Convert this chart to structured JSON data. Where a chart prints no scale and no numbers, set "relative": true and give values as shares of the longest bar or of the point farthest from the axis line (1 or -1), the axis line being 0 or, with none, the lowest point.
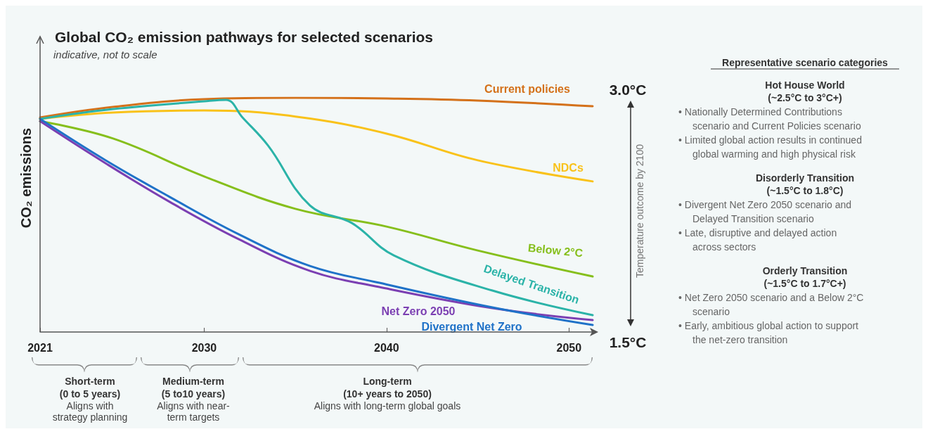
{
  "chart_data": {
    "type": "line",
    "title": "Global CO₂ emission pathways for selected scenarios",
    "subtitle": "indicative, not to scale",
    "ylabel": "CO₂ emissions",
    "relative": true,
    "legend": false,
    "grid": false,
    "xlim": [
      2021,
      2051.3
    ],
    "xticks": [
      2021,
      2030,
      2040,
      2050
    ],
    "series": [
      {
        "name": "Current policies",
        "color": "#d4711a",
        "x": [
          2021,
          2025,
          2030,
          2035,
          2040,
          2045,
          2051.3
        ],
        "values": [
          0.916,
          0.961,
          0.994,
          1,
          0.997,
          0.988,
          0.964
        ]
      },
      {
        "name": "NDCs",
        "color": "#f9c21a",
        "x": [
          2021,
          2025,
          2030,
          2035,
          2040,
          2045,
          2051.3
        ],
        "values": [
          0.91,
          0.937,
          0.946,
          0.92,
          0.847,
          0.733,
          0.643
        ]
      },
      {
        "name": "Below 2°C",
        "color": "#86bf1c",
        "x": [
          2021,
          2025,
          2030,
          2035,
          2040,
          2045,
          2051.3
        ],
        "values": [
          0.9,
          0.826,
          0.664,
          0.526,
          0.45,
          0.348,
          0.237
        ]
      },
      {
        "name": "Delayed Transition",
        "color": "#2bb3a8",
        "x": [
          2021,
          2025,
          2030,
          2031.2,
          2032.1,
          2033.5,
          2035.8,
          2038.1,
          2040.4,
          2045.8,
          2051.3
        ],
        "values": [
          0.91,
          0.952,
          0.985,
          0.991,
          0.916,
          0.796,
          0.54,
          0.465,
          0.327,
          0.177,
          0.072
        ]
      },
      {
        "name": "Net Zero 2050",
        "color": "#7b3fb2",
        "x": [
          2021,
          2024.6,
          2028.1,
          2031.9,
          2035.8,
          2039.6,
          2045.8,
          2051.3
        ],
        "values": [
          0.9,
          0.72,
          0.556,
          0.396,
          0.261,
          0.192,
          0.102,
          0.051
        ]
      },
      {
        "name": "Divergent Net Zero",
        "color": "#1f72c8",
        "x": [
          2021,
          2024.6,
          2028.1,
          2031.9,
          2035.8,
          2039.6,
          2045.8,
          2051.3
        ],
        "values": [
          0.91,
          0.733,
          0.577,
          0.417,
          0.282,
          0.21,
          0.105,
          0.03
        ]
      }
    ],
    "annotations": [
      "3.0°C",
      "1.5°C",
      "Temperature outcome by 2100",
      "Short-term",
      "(0 to 5 years)",
      "Aligns with\nstrategy planning",
      "Medium-term",
      "(5 to10 years)",
      "Aligns with near-\nterm targets",
      "Long-term",
      "(10+ years to 2050)",
      "Aligns with long-term global goals",
      "Representative scenario categories",
      "Hot House World",
      "(~2.5°C to 3°C+)",
      "• Nationally Determined Contributions\nscenario and Current Policies scenario",
      "• Limited global action results in continued\nglobal warming and high physical risk",
      "Disorderly Transition",
      "(~1.5°C to 1.8°C)",
      "• Divergent Net Zero 2050 scenario and\nDelayed Transition scenario",
      "• Late, disruptive and delayed action\nacross sectors",
      "Orderly Transition",
      "(~1.5°C to 1.7°C+)",
      "• Net Zero 2050 scenario and a Below 2°C\nscenario",
      "• Early, ambitious global action to support\nthe net-zero transition"
    ]
  }
}
